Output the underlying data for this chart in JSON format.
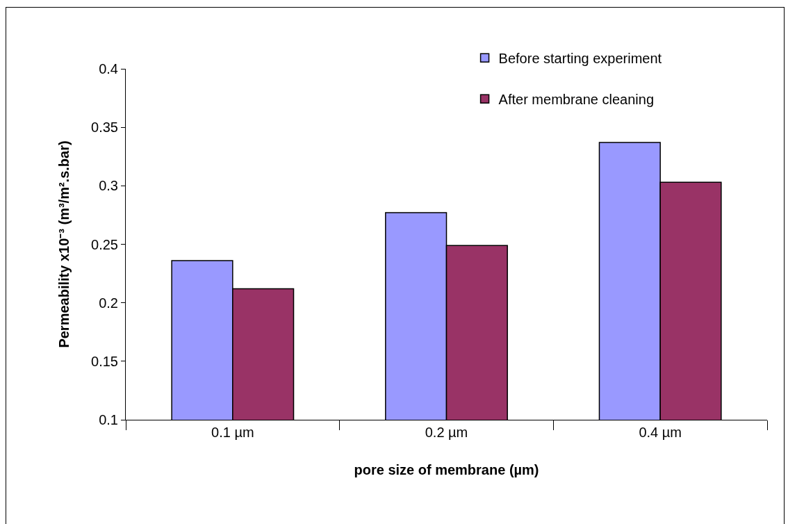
{
  "chart_data": {
    "type": "bar",
    "xlabel": "pore size of membrane (µm)",
    "ylabel": "Permeability x10⁻³ (m³/m².s.bar)",
    "categories": [
      "0.1 µm",
      "0.2 µm",
      "0.4 µm"
    ],
    "series": [
      {
        "name": "Before starting experiment",
        "color": "#9999ff",
        "values": [
          0.236,
          0.277,
          0.337
        ]
      },
      {
        "name": "After membrane cleaning",
        "color": "#993366",
        "values": [
          0.212,
          0.249,
          0.303
        ]
      }
    ],
    "ylim": [
      0.1,
      0.4
    ],
    "yticks": [
      0.1,
      0.15,
      0.2,
      0.25,
      0.3,
      0.35,
      0.4
    ],
    "legend": "top right"
  }
}
